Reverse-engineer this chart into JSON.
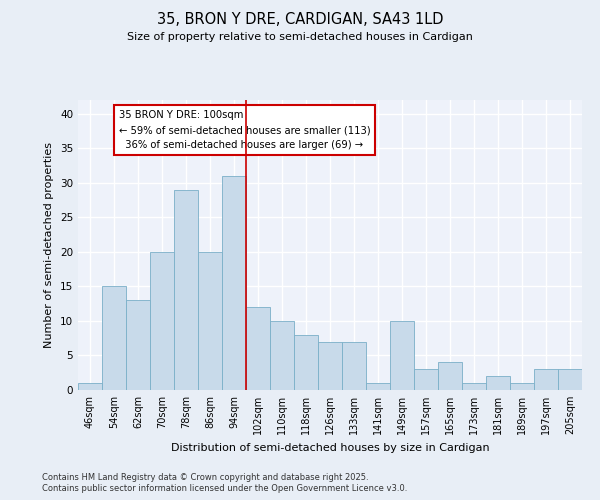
{
  "title": "35, BRON Y DRE, CARDIGAN, SA43 1LD",
  "subtitle": "Size of property relative to semi-detached houses in Cardigan",
  "xlabel": "Distribution of semi-detached houses by size in Cardigan",
  "ylabel": "Number of semi-detached properties",
  "categories": [
    "46sqm",
    "54sqm",
    "62sqm",
    "70sqm",
    "78sqm",
    "86sqm",
    "94sqm",
    "102sqm",
    "110sqm",
    "118sqm",
    "126sqm",
    "133sqm",
    "141sqm",
    "149sqm",
    "157sqm",
    "165sqm",
    "173sqm",
    "181sqm",
    "189sqm",
    "197sqm",
    "205sqm"
  ],
  "values": [
    1,
    15,
    13,
    20,
    29,
    20,
    31,
    12,
    10,
    8,
    7,
    7,
    1,
    10,
    3,
    4,
    1,
    2,
    1,
    3,
    3
  ],
  "bar_color": "#c8daea",
  "bar_edgecolor": "#7aafc8",
  "property_label": "35 BRON Y DRE: 100sqm",
  "pct_smaller": 59,
  "pct_smaller_n": 113,
  "pct_larger": 36,
  "pct_larger_n": 69,
  "line_color": "#cc0000",
  "annotation_box_edgecolor": "#cc0000",
  "ylim": [
    0,
    42
  ],
  "yticks": [
    0,
    5,
    10,
    15,
    20,
    25,
    30,
    35,
    40
  ],
  "bg_color": "#e8eef6",
  "plot_bg_color": "#eef2fa",
  "grid_color": "#ffffff",
  "footer1": "Contains HM Land Registry data © Crown copyright and database right 2025.",
  "footer2": "Contains public sector information licensed under the Open Government Licence v3.0."
}
